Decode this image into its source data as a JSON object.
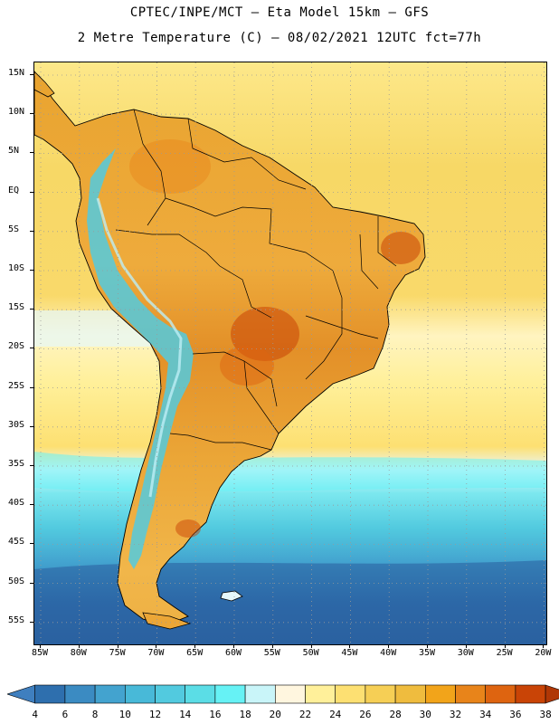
{
  "header": {
    "line1": "CPTEC/INPE/MCT –  Eta Model 15km – GFS",
    "line2": "2 Metre Temperature (C) – 08/02/2021 12UTC fct=77h"
  },
  "lat_labels": [
    "15N",
    "10N",
    "5N",
    "EQ",
    "5S",
    "10S",
    "15S",
    "20S",
    "25S",
    "30S",
    "35S",
    "40S",
    "45S",
    "50S",
    "55S"
  ],
  "lon_labels": [
    "85W",
    "80W",
    "75W",
    "70W",
    "65W",
    "60W",
    "55W",
    "50W",
    "45W",
    "40W",
    "35W",
    "30W",
    "25W",
    "20W"
  ],
  "colorbar": {
    "labels": [
      "4",
      "6",
      "8",
      "10",
      "12",
      "14",
      "16",
      "18",
      "20",
      "22",
      "24",
      "26",
      "28",
      "30",
      "32",
      "34",
      "36",
      "38"
    ],
    "colors": [
      "#3f7fbf",
      "#2e6fae",
      "#3b8bc2",
      "#43a3cf",
      "#48b9d8",
      "#52cadf",
      "#5bdde6",
      "#66f2f5",
      "#c9f5f9",
      "#fff6df",
      "#fff09a",
      "#fde072",
      "#f6cf55",
      "#efbc3e",
      "#f2a41a",
      "#e8841a",
      "#de6410",
      "#c94406",
      "#b03705"
    ]
  },
  "map": {
    "region": "South America",
    "field": "2 Metre Temperature",
    "units": "C"
  }
}
